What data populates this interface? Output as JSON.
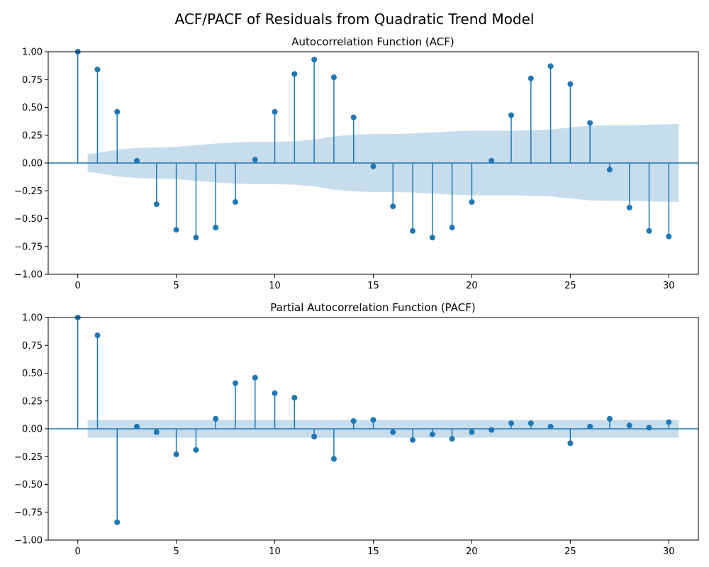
{
  "figure_title": "ACF/PACF of Residuals from Quadratic Trend Model",
  "colors": {
    "series": "#1f77b4",
    "axis": "#000000"
  },
  "chart_data": [
    {
      "type": "stem",
      "title": "Autocorrelation Function (ACF)",
      "xlabel": "",
      "ylabel": "",
      "xlim": [
        -1.5,
        31.5
      ],
      "ylim": [
        -1.0,
        1.0
      ],
      "xticks": [
        0,
        5,
        10,
        15,
        20,
        25,
        30
      ],
      "xtick_labels": [
        "0",
        "5",
        "10",
        "15",
        "20",
        "25",
        "30"
      ],
      "yticks": [
        -1.0,
        -0.75,
        -0.5,
        -0.25,
        0.0,
        0.25,
        0.5,
        0.75,
        1.0
      ],
      "ytick_labels": [
        "−1.00",
        "−0.75",
        "−0.50",
        "−0.25",
        "0.00",
        "0.25",
        "0.50",
        "0.75",
        "1.00"
      ],
      "lags": [
        0,
        1,
        2,
        3,
        4,
        5,
        6,
        7,
        8,
        9,
        10,
        11,
        12,
        13,
        14,
        15,
        16,
        17,
        18,
        19,
        20,
        21,
        22,
        23,
        24,
        25,
        26,
        27,
        28,
        29,
        30
      ],
      "values": [
        1.0,
        0.84,
        0.46,
        0.02,
        -0.37,
        -0.6,
        -0.67,
        -0.58,
        -0.35,
        0.03,
        0.46,
        0.8,
        0.93,
        0.77,
        0.41,
        -0.03,
        -0.39,
        -0.61,
        -0.67,
        -0.58,
        -0.35,
        0.02,
        0.43,
        0.76,
        0.87,
        0.71,
        0.36,
        -0.06,
        -0.4,
        -0.61,
        -0.66
      ],
      "confidence_band": {
        "lags": [
          0.5,
          1,
          2,
          3,
          4,
          5,
          6,
          7,
          8,
          9,
          10,
          11,
          12,
          13,
          14,
          15,
          16,
          17,
          18,
          19,
          20,
          21,
          22,
          23,
          24,
          25,
          26,
          27,
          28,
          29,
          30,
          30.5
        ],
        "upper": [
          0.08,
          0.09,
          0.12,
          0.135,
          0.14,
          0.145,
          0.16,
          0.175,
          0.185,
          0.19,
          0.19,
          0.195,
          0.21,
          0.24,
          0.255,
          0.26,
          0.26,
          0.265,
          0.275,
          0.285,
          0.29,
          0.29,
          0.29,
          0.295,
          0.3,
          0.32,
          0.335,
          0.34,
          0.34,
          0.345,
          0.348,
          0.35
        ]
      }
    },
    {
      "type": "stem",
      "title": "Partial Autocorrelation Function (PACF)",
      "xlabel": "",
      "ylabel": "",
      "xlim": [
        -1.5,
        31.5
      ],
      "ylim": [
        -1.0,
        1.0
      ],
      "xticks": [
        0,
        5,
        10,
        15,
        20,
        25,
        30
      ],
      "xtick_labels": [
        "0",
        "5",
        "10",
        "15",
        "20",
        "25",
        "30"
      ],
      "yticks": [
        -1.0,
        -0.75,
        -0.5,
        -0.25,
        0.0,
        0.25,
        0.5,
        0.75,
        1.0
      ],
      "ytick_labels": [
        "−1.00",
        "−0.75",
        "−0.50",
        "−0.25",
        "0.00",
        "0.25",
        "0.50",
        "0.75",
        "1.00"
      ],
      "lags": [
        0,
        1,
        2,
        3,
        4,
        5,
        6,
        7,
        8,
        9,
        10,
        11,
        12,
        13,
        14,
        15,
        16,
        17,
        18,
        19,
        20,
        21,
        22,
        23,
        24,
        25,
        26,
        27,
        28,
        29,
        30
      ],
      "values": [
        1.0,
        0.84,
        -0.84,
        0.02,
        -0.03,
        -0.23,
        -0.19,
        0.09,
        0.41,
        0.46,
        0.32,
        0.28,
        -0.07,
        -0.27,
        0.07,
        0.08,
        -0.03,
        -0.1,
        -0.05,
        -0.09,
        -0.03,
        -0.01,
        0.05,
        0.05,
        0.02,
        -0.13,
        0.02,
        0.09,
        0.03,
        0.01,
        0.06
      ],
      "confidence_band": {
        "lags": [
          0.5,
          30.5
        ],
        "upper": [
          0.08,
          0.08
        ]
      }
    }
  ]
}
